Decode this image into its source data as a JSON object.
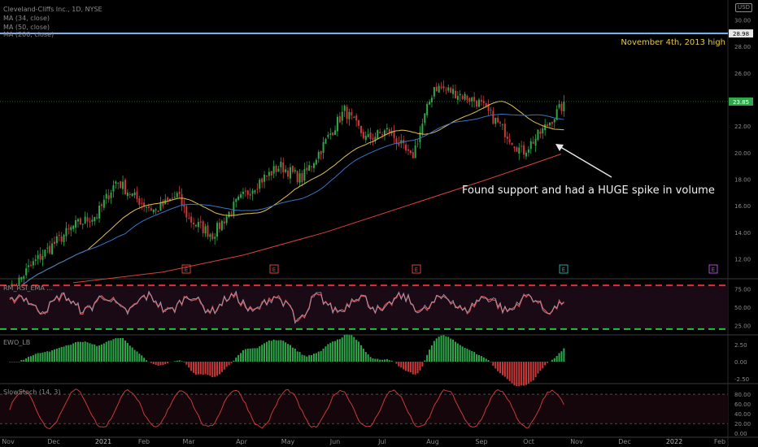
{
  "header": {
    "title": "Cleveland-Cliffs Inc., 1D, NYSE",
    "ma34": "MA (34, close)",
    "ma50": "MA (50, close)",
    "ma200": "MA (200, close)",
    "currency": "USD"
  },
  "colors": {
    "up": "#2ea84a",
    "down": "#c83a3a",
    "ma34": "#e0c04e",
    "ma50": "#3a74c8",
    "ma200": "#d8423e",
    "high_line": "#8ab4f8",
    "text": "#8a8a8a",
    "annotation": "#f0f0f0",
    "high_text": "#e8c848"
  },
  "annotations": {
    "high_label": "November 4th, 2013 high",
    "support_note": "Found support and had a HUGE spike in volume"
  },
  "price_tags": {
    "high": "28.98",
    "last": "23.85"
  },
  "earnings_marker": "E",
  "panes": {
    "rsi": "RM_RSI_EMA ...",
    "ewo": "EWO_LB",
    "stoch": "SlowStoch (14, 3)"
  },
  "chart_data": [
    {
      "type": "candlestick",
      "title": "Cleveland-Cliffs Inc., 1D, NYSE",
      "x_ticks": [
        "Nov",
        "Dec",
        "2021",
        "Feb",
        "Mar",
        "Apr",
        "May",
        "Jun",
        "Jul",
        "Aug",
        "Sep",
        "Oct",
        "Nov",
        "Dec",
        "2022",
        "Feb"
      ],
      "y_ticks": [
        12.0,
        14.0,
        16.0,
        18.0,
        20.0,
        22.0,
        24.0,
        26.0,
        28.0,
        30.0
      ],
      "ylim": [
        10.5,
        31.5
      ],
      "key_levels": {
        "resistance_high": 28.98,
        "last_close": 23.85
      },
      "ohlc_weekly_approx": [
        {
          "x": "2020-11-02",
          "c": 9.5
        },
        {
          "x": "2020-11-16",
          "c": 11.5
        },
        {
          "x": "2020-11-30",
          "c": 13.0
        },
        {
          "x": "2020-12-14",
          "c": 14.5
        },
        {
          "x": "2020-12-28",
          "c": 15.3
        },
        {
          "x": "2021-01-11",
          "c": 17.9
        },
        {
          "x": "2021-01-25",
          "c": 16.6
        },
        {
          "x": "2021-02-08",
          "c": 15.6
        },
        {
          "x": "2021-02-22",
          "c": 16.8
        },
        {
          "x": "2021-03-01",
          "c": 15.0
        },
        {
          "x": "2021-03-15",
          "c": 13.8
        },
        {
          "x": "2021-03-29",
          "c": 16.2
        },
        {
          "x": "2021-04-12",
          "c": 17.8
        },
        {
          "x": "2021-04-26",
          "c": 19.0
        },
        {
          "x": "2021-05-10",
          "c": 18.0
        },
        {
          "x": "2021-05-24",
          "c": 20.5
        },
        {
          "x": "2021-06-07",
          "c": 23.2
        },
        {
          "x": "2021-06-21",
          "c": 21.0
        },
        {
          "x": "2021-07-05",
          "c": 21.7
        },
        {
          "x": "2021-07-19",
          "c": 19.5
        },
        {
          "x": "2021-08-02",
          "c": 25.0
        },
        {
          "x": "2021-08-16",
          "c": 24.5
        },
        {
          "x": "2021-08-30",
          "c": 23.8
        },
        {
          "x": "2021-09-13",
          "c": 22.0
        },
        {
          "x": "2021-09-27",
          "c": 20.0
        },
        {
          "x": "2021-10-11",
          "c": 21.8
        },
        {
          "x": "2021-10-25",
          "c": 23.85
        }
      ],
      "series": [
        {
          "name": "MA (34, close)",
          "color": "#e0c04e"
        },
        {
          "name": "MA (50, close)",
          "color": "#3a74c8"
        },
        {
          "name": "MA (200, close)",
          "color": "#d8423e"
        }
      ]
    },
    {
      "type": "line",
      "title": "RM_RSI_EMA",
      "y_ticks": [
        25.0,
        50.0,
        75.0
      ],
      "ylim": [
        12,
        88
      ],
      "levels": {
        "upper": 80,
        "lower": 20
      }
    },
    {
      "type": "bar",
      "title": "EWO_LB",
      "y_ticks": [
        -2.5,
        0.0,
        2.5
      ],
      "ylim": [
        -3.2,
        3.8
      ]
    },
    {
      "type": "line",
      "title": "SlowStoch (14, 3)",
      "y_ticks": [
        0.0,
        20.0,
        40.0,
        60.0,
        80.0
      ],
      "ylim": [
        -8,
        100
      ],
      "levels": {
        "upper": 80,
        "lower": 20
      }
    }
  ]
}
